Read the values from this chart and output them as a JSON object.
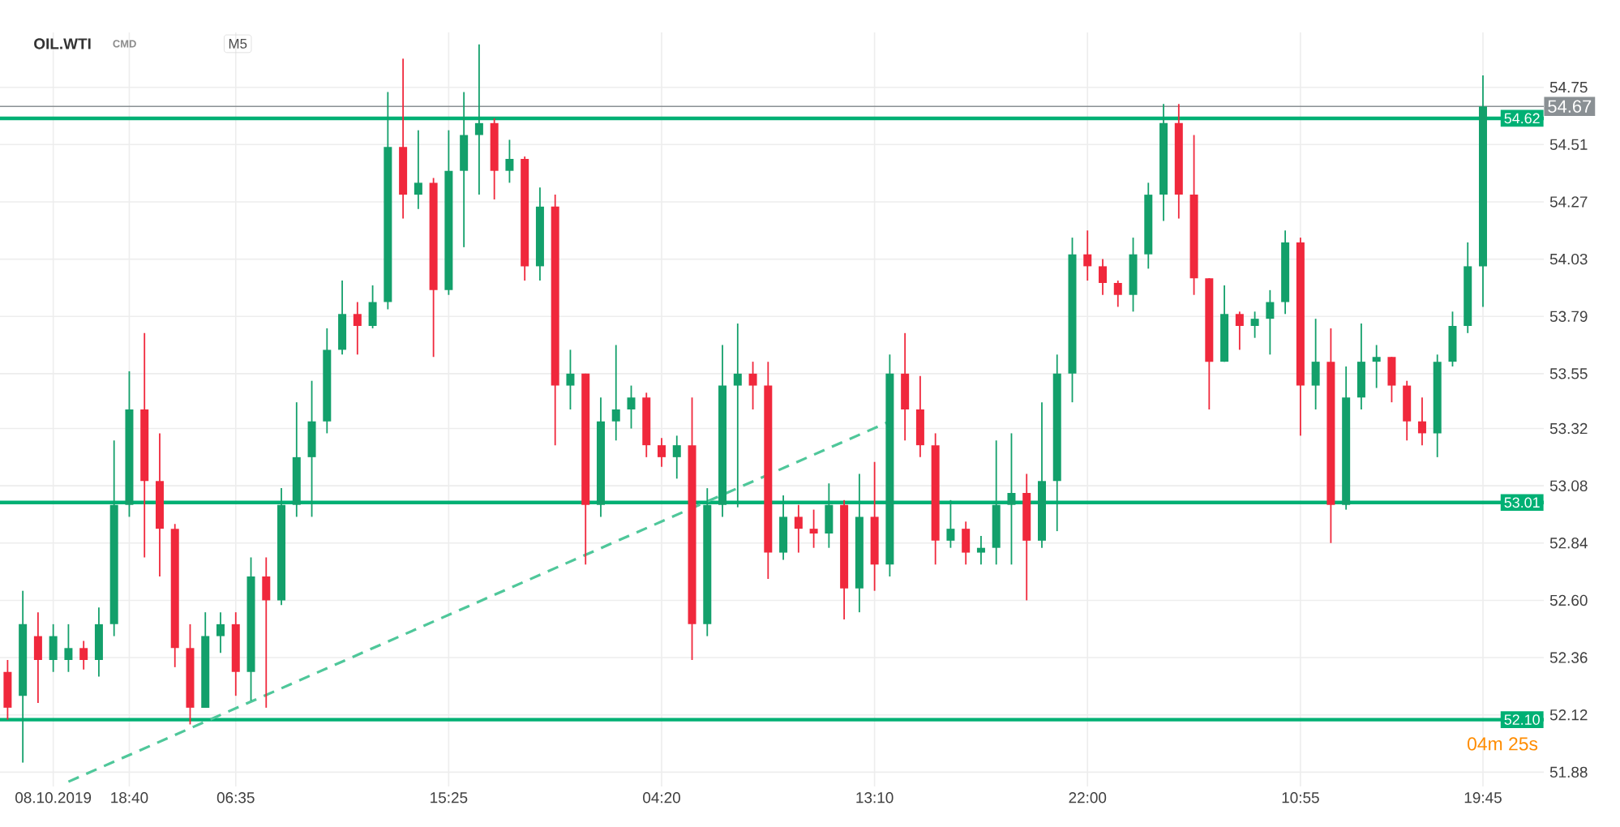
{
  "chart_data": {
    "type": "candlestick",
    "title": "OIL.WTI",
    "subtitle": "CMD",
    "annotations": [
      "M5",
      "04m 25s"
    ],
    "categories": [
      null,
      null,
      null,
      "08.10.2019",
      null,
      null,
      null,
      null,
      "18:40",
      null,
      null,
      null,
      null,
      null,
      null,
      "06:35",
      null,
      null,
      null,
      null,
      null,
      null,
      null,
      null,
      null,
      null,
      null,
      null,
      null,
      "15:25",
      null,
      null,
      null,
      null,
      null,
      null,
      null,
      null,
      null,
      null,
      null,
      null,
      null,
      "04:20",
      null,
      null,
      null,
      null,
      null,
      null,
      null,
      null,
      null,
      null,
      null,
      null,
      null,
      "13:10",
      null,
      null,
      null,
      null,
      null,
      null,
      null,
      null,
      null,
      null,
      null,
      null,
      null,
      "22:00",
      null,
      null,
      null,
      null,
      null,
      null,
      null,
      null,
      null,
      null,
      null,
      null,
      null,
      "10:55",
      null,
      null,
      null,
      null,
      null,
      null,
      null,
      null,
      null,
      null,
      null,
      "19:45"
    ],
    "ohlc": [
      [
        52.3,
        52.35,
        52.1,
        52.15
      ],
      [
        52.2,
        52.64,
        51.92,
        52.5
      ],
      [
        52.45,
        52.55,
        52.17,
        52.35
      ],
      [
        52.35,
        52.5,
        52.3,
        52.45
      ],
      [
        52.35,
        52.5,
        52.3,
        52.4
      ],
      [
        52.4,
        52.43,
        52.31,
        52.35
      ],
      [
        52.35,
        52.57,
        52.28,
        52.5
      ],
      [
        52.5,
        53.27,
        52.45,
        53.0
      ],
      [
        53.0,
        53.56,
        52.95,
        53.4
      ],
      [
        53.4,
        53.72,
        52.78,
        53.1
      ],
      [
        53.1,
        53.3,
        52.7,
        52.9
      ],
      [
        52.9,
        52.92,
        52.32,
        52.4
      ],
      [
        52.4,
        52.5,
        52.08,
        52.15
      ],
      [
        52.15,
        52.55,
        52.15,
        52.45
      ],
      [
        52.45,
        52.55,
        52.38,
        52.5
      ],
      [
        52.5,
        52.55,
        52.2,
        52.3
      ],
      [
        52.3,
        52.78,
        52.18,
        52.7
      ],
      [
        52.7,
        52.78,
        52.15,
        52.6
      ],
      [
        52.6,
        53.07,
        52.58,
        53.0
      ],
      [
        53.0,
        53.43,
        52.95,
        53.2
      ],
      [
        53.2,
        53.52,
        52.95,
        53.35
      ],
      [
        53.35,
        53.74,
        53.3,
        53.65
      ],
      [
        53.65,
        53.94,
        53.63,
        53.8
      ],
      [
        53.8,
        53.85,
        53.63,
        53.75
      ],
      [
        53.75,
        53.92,
        53.74,
        53.85
      ],
      [
        53.85,
        54.73,
        53.82,
        54.5
      ],
      [
        54.5,
        54.87,
        54.2,
        54.3
      ],
      [
        54.3,
        54.57,
        54.24,
        54.35
      ],
      [
        54.35,
        54.37,
        53.62,
        53.9
      ],
      [
        53.9,
        54.57,
        53.88,
        54.4
      ],
      [
        54.4,
        54.73,
        54.08,
        54.55
      ],
      [
        54.55,
        54.93,
        54.3,
        54.6
      ],
      [
        54.6,
        54.62,
        54.28,
        54.4
      ],
      [
        54.4,
        54.53,
        54.35,
        54.45
      ],
      [
        54.45,
        54.46,
        53.94,
        54.0
      ],
      [
        54.0,
        54.33,
        53.94,
        54.25
      ],
      [
        54.25,
        54.3,
        53.25,
        53.5
      ],
      [
        53.5,
        53.65,
        53.4,
        53.55
      ],
      [
        53.55,
        53.55,
        52.75,
        53.0
      ],
      [
        53.0,
        53.45,
        52.95,
        53.35
      ],
      [
        53.35,
        53.67,
        53.27,
        53.4
      ],
      [
        53.4,
        53.5,
        53.32,
        53.45
      ],
      [
        53.45,
        53.47,
        53.2,
        53.25
      ],
      [
        53.25,
        53.28,
        53.16,
        53.2
      ],
      [
        53.2,
        53.29,
        53.11,
        53.25
      ],
      [
        53.25,
        53.45,
        52.35,
        52.5
      ],
      [
        52.5,
        53.07,
        52.45,
        53.0
      ],
      [
        53.0,
        53.67,
        52.95,
        53.5
      ],
      [
        53.5,
        53.76,
        52.99,
        53.55
      ],
      [
        53.55,
        53.6,
        53.4,
        53.5
      ],
      [
        53.5,
        53.6,
        52.69,
        52.8
      ],
      [
        52.8,
        53.04,
        52.77,
        52.95
      ],
      [
        52.95,
        53.0,
        52.8,
        52.9
      ],
      [
        52.9,
        52.98,
        52.82,
        52.88
      ],
      [
        52.88,
        53.09,
        52.82,
        53.0
      ],
      [
        53.0,
        53.02,
        52.52,
        52.65
      ],
      [
        52.65,
        53.13,
        52.55,
        52.95
      ],
      [
        52.95,
        53.18,
        52.64,
        52.75
      ],
      [
        52.75,
        53.63,
        52.7,
        53.55
      ],
      [
        53.55,
        53.72,
        53.27,
        53.4
      ],
      [
        53.4,
        53.54,
        53.2,
        53.25
      ],
      [
        53.25,
        53.3,
        52.75,
        52.85
      ],
      [
        52.85,
        53.02,
        52.82,
        52.9
      ],
      [
        52.9,
        52.93,
        52.75,
        52.8
      ],
      [
        52.8,
        52.87,
        52.75,
        52.82
      ],
      [
        52.82,
        53.27,
        52.75,
        53.0
      ],
      [
        53.0,
        53.3,
        52.75,
        53.05
      ],
      [
        53.05,
        53.13,
        52.6,
        52.85
      ],
      [
        52.85,
        53.43,
        52.82,
        53.1
      ],
      [
        53.1,
        53.63,
        52.89,
        53.55
      ],
      [
        53.55,
        54.12,
        53.43,
        54.05
      ],
      [
        54.05,
        54.15,
        53.94,
        54.0
      ],
      [
        54.0,
        54.03,
        53.88,
        53.93
      ],
      [
        53.93,
        53.94,
        53.83,
        53.88
      ],
      [
        53.88,
        54.12,
        53.81,
        54.05
      ],
      [
        54.05,
        54.35,
        53.99,
        54.3
      ],
      [
        54.3,
        54.68,
        54.19,
        54.6
      ],
      [
        54.6,
        54.68,
        54.2,
        54.3
      ],
      [
        54.3,
        54.55,
        53.88,
        53.95
      ],
      [
        53.95,
        53.95,
        53.4,
        53.6
      ],
      [
        53.6,
        53.92,
        53.6,
        53.8
      ],
      [
        53.8,
        53.81,
        53.65,
        53.75
      ],
      [
        53.75,
        53.81,
        53.7,
        53.78
      ],
      [
        53.78,
        53.9,
        53.63,
        53.85
      ],
      [
        53.85,
        54.15,
        53.8,
        54.1
      ],
      [
        54.1,
        54.12,
        53.29,
        53.5
      ],
      [
        53.5,
        53.78,
        53.4,
        53.6
      ],
      [
        53.6,
        53.74,
        52.84,
        53.0
      ],
      [
        53.0,
        53.58,
        52.98,
        53.45
      ],
      [
        53.45,
        53.76,
        53.4,
        53.6
      ],
      [
        53.6,
        53.67,
        53.49,
        53.62
      ],
      [
        53.62,
        53.62,
        53.43,
        53.5
      ],
      [
        53.5,
        53.52,
        53.27,
        53.35
      ],
      [
        53.35,
        53.45,
        53.25,
        53.3
      ],
      [
        53.3,
        53.63,
        53.2,
        53.6
      ],
      [
        53.6,
        53.81,
        53.58,
        53.75
      ],
      [
        53.75,
        54.1,
        53.72,
        54.0
      ],
      [
        54.0,
        54.8,
        53.83,
        54.67
      ]
    ],
    "series": [
      {
        "type": "line",
        "values": [
          null,
          null,
          null,
          null,
          51.84,
          null,
          null,
          null,
          null,
          null,
          null,
          null,
          null,
          null,
          null,
          null,
          null,
          null,
          null,
          null,
          null,
          null,
          null,
          null,
          null,
          null,
          null,
          null,
          null,
          null,
          null,
          null,
          null,
          null,
          null,
          null,
          null,
          null,
          null,
          null,
          null,
          null,
          null,
          null,
          null,
          null,
          null,
          null,
          null,
          null,
          null,
          null,
          null,
          null,
          null,
          null,
          null,
          null,
          53.35,
          null,
          null,
          null,
          null,
          null,
          null,
          null,
          null,
          null,
          null,
          null,
          null,
          null,
          null,
          null,
          null,
          null,
          null,
          null,
          null,
          null,
          null,
          null,
          null,
          null,
          null,
          null,
          null,
          null,
          null,
          null,
          null,
          null,
          null,
          null,
          null,
          null,
          null,
          null
        ],
        "color": "#4fc79a",
        "line_style": "dashed"
      }
    ],
    "ref_lines": [
      {
        "axis": "y",
        "value": 54.67,
        "label": "54.67",
        "color": "#8a9094"
      },
      {
        "axis": "y",
        "value": 54.62,
        "label": "54.62",
        "color": "#00b074"
      },
      {
        "axis": "y",
        "value": 53.01,
        "label": "53.01",
        "color": "#00b074"
      },
      {
        "axis": "y",
        "value": 52.1,
        "label": "52.10",
        "color": "#00b074"
      }
    ],
    "ylim": [
      51.82,
      54.98
    ],
    "yticks": [
      51.88,
      52.12,
      52.36,
      {
        "value": 52.6,
        "label": "52.60"
      },
      52.84,
      53.08,
      53.32,
      53.55,
      53.79,
      54.03,
      54.27,
      54.51,
      54.75
    ],
    "grid": true
  }
}
